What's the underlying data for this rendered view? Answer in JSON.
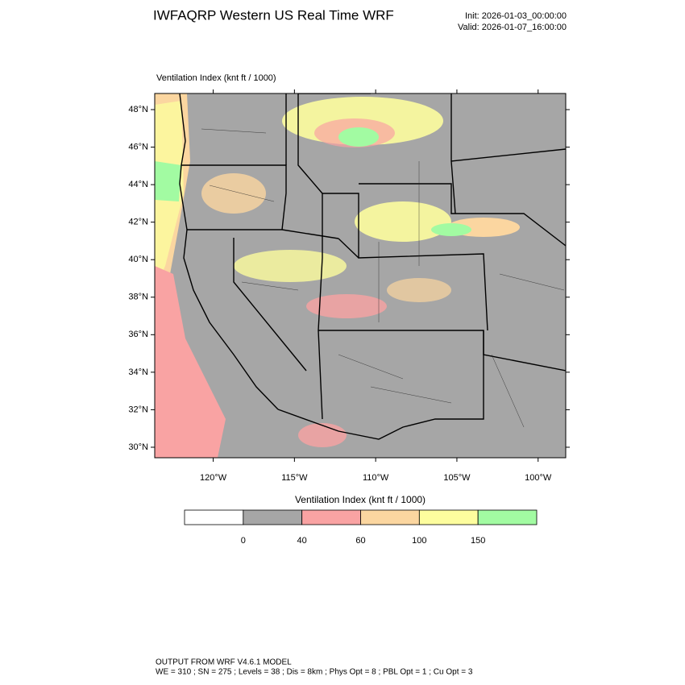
{
  "header": {
    "title": "IWFAQRP Western US Real Time WRF",
    "init": "Init: 2026-01-03_00:00:00",
    "valid": "Valid: 2026-01-07_16:00:00"
  },
  "map": {
    "label": "Ventilation Index   (knt ft / 1000)",
    "lon_lim": [
      -123.6,
      -98.3
    ],
    "lat_lim": [
      29.44,
      48.86
    ],
    "lat_ticks": [
      {
        "value": 30,
        "label": "30°N"
      },
      {
        "value": 32,
        "label": "32°N"
      },
      {
        "value": 34,
        "label": "34°N"
      },
      {
        "value": 36,
        "label": "36°N"
      },
      {
        "value": 38,
        "label": "38°N"
      },
      {
        "value": 40,
        "label": "40°N"
      },
      {
        "value": 42,
        "label": "42°N"
      },
      {
        "value": 44,
        "label": "44°N"
      },
      {
        "value": 46,
        "label": "46°N"
      },
      {
        "value": 48,
        "label": "48°N"
      }
    ],
    "lon_ticks": [
      {
        "value": -120,
        "label": "120°W"
      },
      {
        "value": -115,
        "label": "115°W"
      },
      {
        "value": -110,
        "label": "110°W"
      },
      {
        "value": -105,
        "label": "105°W"
      },
      {
        "value": -100,
        "label": "100°W"
      }
    ]
  },
  "colorbar": {
    "title": "Ventilation Index   (knt ft / 1000)",
    "levels": [
      0,
      40,
      60,
      100,
      150
    ],
    "colors": [
      "#ffffff",
      "#a6a6a6",
      "#f9a3a3",
      "#fbd6a0",
      "#fdfd9e",
      "#a2fba2"
    ]
  },
  "footer": {
    "line1": "OUTPUT FROM WRF V4.6.1 MODEL",
    "line2": "WE = 310 ; SN = 275 ; Levels = 38 ; Dis = 8km ; Phys Opt = 8 ; PBL Opt = 1 ; Cu Opt = 3"
  }
}
